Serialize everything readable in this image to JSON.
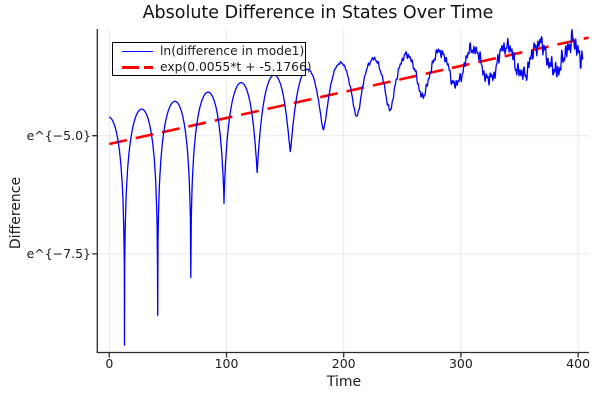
{
  "chart_data": {
    "type": "line",
    "title": "Absolute Difference in States Over Time",
    "xlabel": "Time",
    "ylabel": "Difference",
    "xlim": [
      -10.2,
      409.3
    ],
    "ylim": [
      -9.585,
      -2.745
    ],
    "grid": true,
    "frame": "left-bottom-spines",
    "legend_position": "top-left",
    "grid_color": "#e9e9e9",
    "axis_color": "#2b2b2b",
    "text_color": "#1c1c1c",
    "x_ticks": {
      "values": [
        0,
        100,
        200,
        300,
        400
      ],
      "labels": [
        "0",
        "100",
        "200",
        "300",
        "400"
      ]
    },
    "y_ticks": {
      "values": [
        -5.0,
        -7.5
      ],
      "labels": [
        "e^{−5.0}",
        "e^{−7.5}"
      ]
    },
    "series": [
      {
        "name": "ln(difference in mode1)",
        "color": "#0000ff",
        "style": "solid",
        "width": 1.3,
        "model": {
          "description": "log of absolute difference: rising envelope with periodic near-zero cusps, increasingly noisy",
          "oscillation": {
            "period": 28.3,
            "first_zero": 13.0,
            "t_start": 0,
            "t_end": 404
          },
          "peak_envelope_ln": [
            [
              0,
              -4.6
            ],
            [
              27,
              -4.44
            ],
            [
              55,
              -4.28
            ],
            [
              84,
              -4.08
            ],
            [
              112,
              -3.88
            ],
            [
              140,
              -3.72
            ],
            [
              168,
              -3.6
            ],
            [
              197,
              -3.46
            ],
            [
              225,
              -3.38
            ],
            [
              253,
              -3.3
            ],
            [
              282,
              -3.22
            ],
            [
              310,
              -3.16
            ],
            [
              338,
              -3.1
            ],
            [
              366,
              -3.05
            ],
            [
              404,
              -3.02
            ]
          ],
          "dip_minima_ln": [
            [
              13,
              -9.43
            ],
            [
              41.3,
              -8.8
            ],
            [
              69.6,
              -8.0
            ],
            [
              97.9,
              -6.43
            ],
            [
              126.2,
              -5.78
            ],
            [
              154.5,
              -5.34
            ],
            [
              182.8,
              -4.88
            ],
            [
              211.1,
              -4.6
            ],
            [
              239.4,
              -4.45
            ],
            [
              267.7,
              -4.15
            ],
            [
              296,
              -3.9
            ],
            [
              324.3,
              -3.8
            ],
            [
              352.6,
              -3.7
            ],
            [
              380.9,
              -3.6
            ],
            [
              409,
              -3.55
            ]
          ],
          "noise": {
            "onset": 140,
            "max_amp": 0.26,
            "power": 1.4
          }
        }
      },
      {
        "name": "exp(0.0055*t + -5.1766)",
        "color": "#ff0000",
        "style": "dashed",
        "width": 2.6,
        "dash": [
          18,
          9
        ],
        "fit": {
          "slope": 0.0055,
          "intercept": -5.1766,
          "t_start": 0,
          "t_end": 409
        }
      }
    ]
  }
}
